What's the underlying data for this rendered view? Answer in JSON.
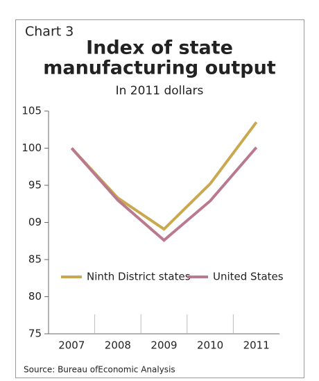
{
  "chart_data": {
    "type": "line",
    "label": "Chart 3",
    "title": [
      "Index of state",
      "manufacturing output"
    ],
    "subtitle": "In 2011 dollars",
    "source": "Source: Bureau ofEconomic Analysis",
    "categories": [
      "2007",
      "2008",
      "2009",
      "2010",
      "2011"
    ],
    "series": [
      {
        "name": "Ninth District states",
        "color": "#c9a84f",
        "values": [
          100,
          93.3,
          89.1,
          95.2,
          103.5
        ]
      },
      {
        "name": "United States",
        "color": "#b97a8e",
        "values": [
          100,
          93,
          87.6,
          92.9,
          100.1
        ]
      }
    ],
    "ylim": [
      75,
      105
    ],
    "yticks": [
      75,
      80,
      85,
      {
        "value": 90,
        "label": "09"
      },
      95,
      100,
      105
    ]
  }
}
